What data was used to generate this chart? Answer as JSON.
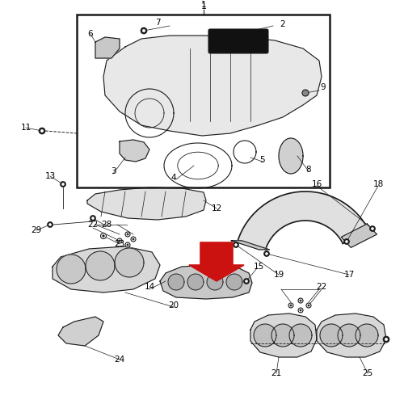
{
  "bg_color": "#ffffff",
  "fig_width": 5.0,
  "fig_height": 5.0,
  "dpi": 100,
  "image_pixels": null
}
